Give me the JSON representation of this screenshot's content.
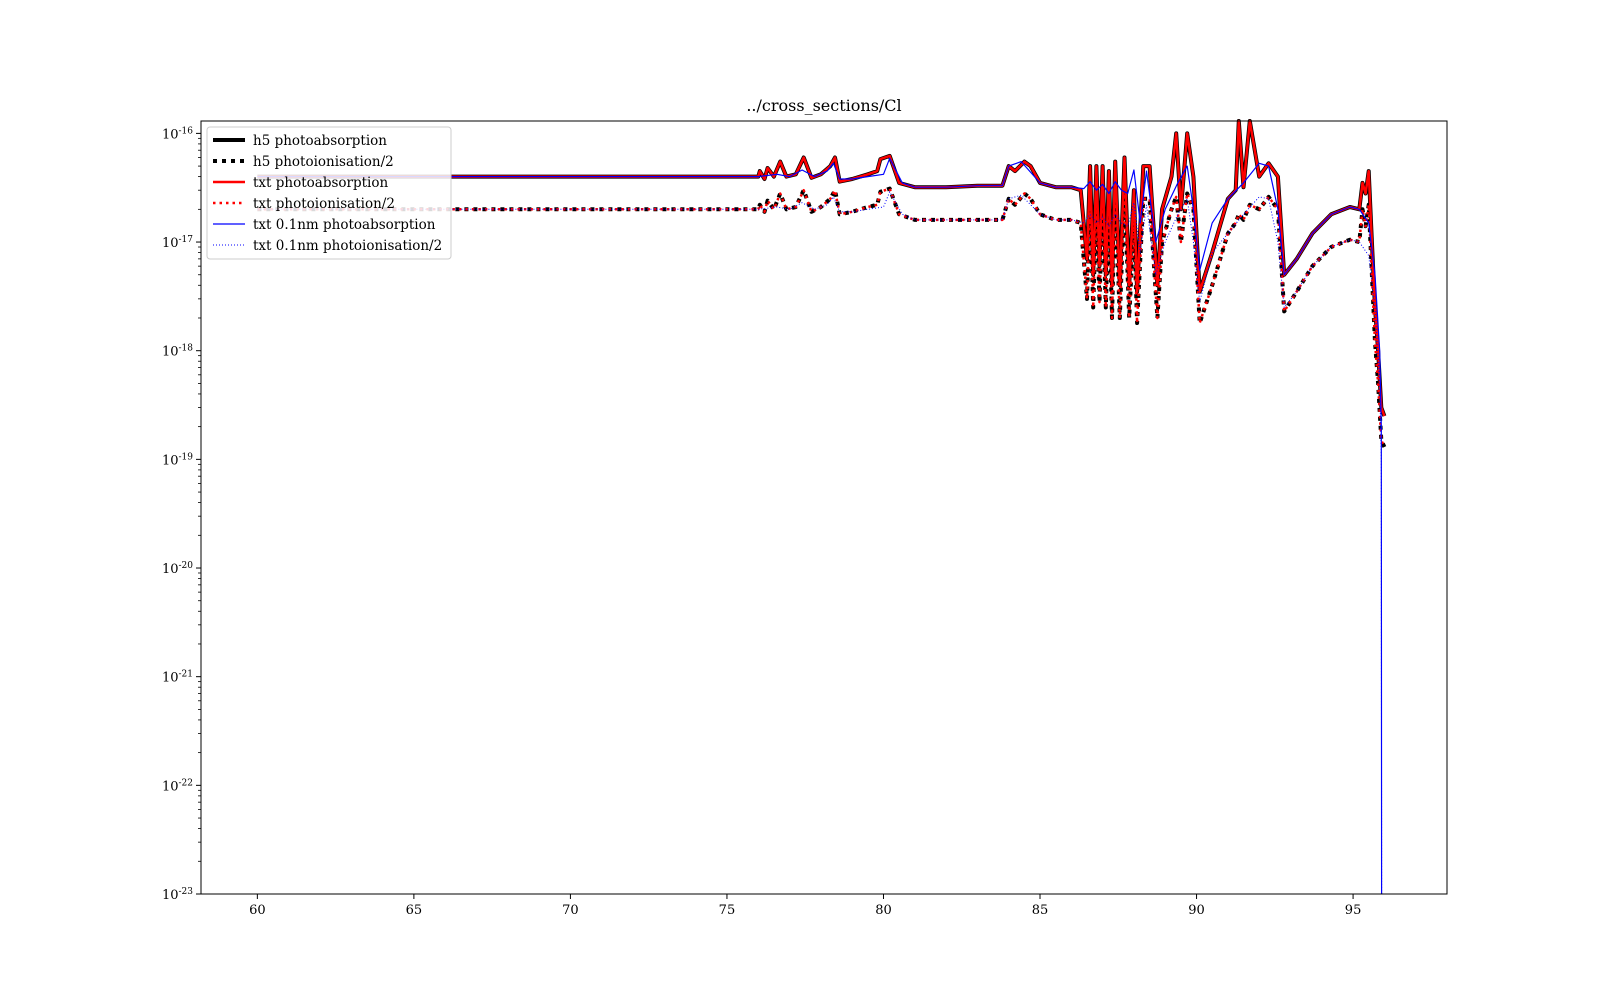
{
  "chart_data": {
    "type": "line",
    "title": "../cross_sections/Cl",
    "xlabel": "",
    "ylabel": "",
    "xlim": [
      58.2,
      98.0
    ],
    "ylim": [
      1e-23,
      1.3e-16
    ],
    "y_scale": "log",
    "x_ticks": [
      60,
      65,
      70,
      75,
      80,
      85,
      90,
      95
    ],
    "y_ticks": [
      {
        "exp": -16,
        "base": "10",
        "sup": "-16"
      },
      {
        "exp": -17,
        "base": "10",
        "sup": "-17"
      },
      {
        "exp": -18,
        "base": "10",
        "sup": "-18"
      },
      {
        "exp": -19,
        "base": "10",
        "sup": "-19"
      },
      {
        "exp": -20,
        "base": "10",
        "sup": "-20"
      },
      {
        "exp": -21,
        "base": "10",
        "sup": "-21"
      },
      {
        "exp": -22,
        "base": "10",
        "sup": "-22"
      },
      {
        "exp": -23,
        "base": "10",
        "sup": "-23"
      }
    ],
    "grid": false,
    "legend_position": "top-left",
    "x": [
      60,
      62,
      64,
      66,
      68,
      70,
      72,
      74,
      75,
      76,
      76.05,
      76.2,
      76.3,
      76.5,
      76.7,
      76.9,
      77.2,
      77.45,
      77.7,
      78.0,
      78.3,
      78.45,
      78.6,
      79.0,
      79.5,
      79.8,
      79.9,
      80.2,
      80.5,
      81.0,
      82.0,
      83.0,
      83.8,
      84.0,
      84.2,
      84.5,
      84.7,
      85.0,
      85.5,
      86.0,
      86.3,
      86.5,
      86.6,
      86.7,
      86.8,
      86.9,
      87.0,
      87.1,
      87.2,
      87.3,
      87.4,
      87.55,
      87.7,
      87.85,
      88.0,
      88.1,
      88.3,
      88.5,
      88.75,
      88.9,
      89.2,
      89.35,
      89.5,
      89.7,
      89.9,
      90.1,
      90.5,
      91.0,
      91.25,
      91.35,
      91.5,
      91.7,
      92.0,
      92.3,
      92.6,
      92.8,
      93.2,
      93.7,
      94.3,
      94.9,
      95.2,
      95.3,
      95.4,
      95.5,
      95.6,
      95.7,
      95.8,
      95.9,
      96.0
    ],
    "series": [
      {
        "name": "h5 photoabsorption",
        "color": "#000000",
        "style": "solid-thick",
        "values": [
          4e-17,
          4e-17,
          4e-17,
          4e-17,
          4e-17,
          4e-17,
          4e-17,
          4e-17,
          4e-17,
          4e-17,
          4.5e-17,
          3.8e-17,
          4.8e-17,
          4e-17,
          5.5e-17,
          4e-17,
          4.2e-17,
          6e-17,
          3.9e-17,
          4.2e-17,
          5e-17,
          6e-17,
          3.6e-17,
          3.8e-17,
          4.2e-17,
          4.5e-17,
          5.8e-17,
          6.2e-17,
          3.5e-17,
          3.2e-17,
          3.2e-17,
          3.3e-17,
          3.3e-17,
          5e-17,
          4.5e-17,
          5.5e-17,
          5e-17,
          3.5e-17,
          3.2e-17,
          3.2e-17,
          3e-17,
          7e-18,
          5e-17,
          5e-18,
          5e-17,
          6e-18,
          5e-17,
          5e-18,
          4.5e-17,
          4e-18,
          5.5e-17,
          4e-18,
          6e-17,
          4e-18,
          3e-17,
          3.5e-18,
          5e-17,
          5e-17,
          4e-18,
          2e-17,
          4e-17,
          1e-16,
          2e-17,
          1e-16,
          4e-17,
          3.5e-18,
          8e-18,
          2.5e-17,
          3e-17,
          1.3e-16,
          3.2e-17,
          1.3e-16,
          4e-17,
          5.3e-17,
          4e-17,
          5e-18,
          7e-18,
          1.2e-17,
          1.8e-17,
          2.1e-17,
          2e-17,
          3.5e-17,
          2.8e-17,
          4.5e-17,
          1e-17,
          2.5e-18,
          1e-18,
          3e-19,
          2.5e-19
        ]
      },
      {
        "name": "h5 photoionisation/2",
        "color": "#000000",
        "style": "dotted-thick",
        "values": [
          2e-17,
          2e-17,
          2e-17,
          2e-17,
          2e-17,
          2e-17,
          2e-17,
          2e-17,
          2e-17,
          2e-17,
          2.2e-17,
          1.9e-17,
          2.4e-17,
          2e-17,
          2.8e-17,
          2e-17,
          2.1e-17,
          3e-17,
          1.9e-17,
          2.1e-17,
          2.5e-17,
          3e-17,
          1.8e-17,
          1.9e-17,
          2.1e-17,
          2.2e-17,
          2.9e-17,
          3.1e-17,
          1.8e-17,
          1.6e-17,
          1.6e-17,
          1.6e-17,
          1.6e-17,
          2.5e-17,
          2.2e-17,
          2.8e-17,
          2.5e-17,
          1.8e-17,
          1.6e-17,
          1.6e-17,
          1.5e-17,
          3e-18,
          2.5e-17,
          2.5e-18,
          2.5e-17,
          2.8e-18,
          2.5e-17,
          2.5e-18,
          2.2e-17,
          2e-18,
          2.8e-17,
          2e-18,
          3e-17,
          2e-18,
          1.5e-17,
          1.8e-18,
          2.5e-17,
          2.5e-17,
          2e-18,
          1e-17,
          2e-17,
          2.6e-17,
          1e-17,
          2.8e-17,
          2e-17,
          1.8e-18,
          4e-18,
          1.2e-17,
          1.5e-17,
          1.8e-17,
          1.6e-17,
          2.2e-17,
          2e-17,
          2.6e-17,
          2e-17,
          2.3e-18,
          3.5e-18,
          6e-18,
          9e-18,
          1.05e-17,
          1e-17,
          2e-17,
          1.4e-17,
          2.2e-17,
          5e-18,
          1.2e-18,
          5e-19,
          1.5e-19,
          1.3e-19
        ]
      },
      {
        "name": "txt photoabsorption",
        "color": "#ff0000",
        "style": "solid-medium",
        "values": [
          4e-17,
          4e-17,
          4e-17,
          4e-17,
          4e-17,
          4e-17,
          4e-17,
          4e-17,
          4e-17,
          4e-17,
          4.5e-17,
          3.8e-17,
          4.8e-17,
          4e-17,
          5.5e-17,
          4e-17,
          4.2e-17,
          6e-17,
          3.9e-17,
          4.2e-17,
          5e-17,
          6e-17,
          3.6e-17,
          3.8e-17,
          4.2e-17,
          4.5e-17,
          5.8e-17,
          6.2e-17,
          3.5e-17,
          3.2e-17,
          3.2e-17,
          3.3e-17,
          3.3e-17,
          5e-17,
          4.5e-17,
          5.5e-17,
          5e-17,
          3.5e-17,
          3.2e-17,
          3.2e-17,
          3e-17,
          7e-18,
          5e-17,
          5e-18,
          5e-17,
          6e-18,
          5e-17,
          5e-18,
          4.5e-17,
          4e-18,
          5.5e-17,
          4e-18,
          6e-17,
          4e-18,
          3e-17,
          3.5e-18,
          5e-17,
          5e-17,
          4e-18,
          2e-17,
          4e-17,
          1e-16,
          2e-17,
          1e-16,
          4e-17,
          3.5e-18,
          8e-18,
          2.5e-17,
          3e-17,
          1.3e-16,
          3.2e-17,
          1.3e-16,
          4e-17,
          5.3e-17,
          4e-17,
          5e-18,
          7e-18,
          1.2e-17,
          1.8e-17,
          2.1e-17,
          2e-17,
          3.5e-17,
          2.8e-17,
          4.5e-17,
          1e-17,
          2.5e-18,
          1e-18,
          3e-19,
          2.5e-19
        ]
      },
      {
        "name": "txt photoionisation/2",
        "color": "#ff0000",
        "style": "dotted-medium",
        "values": [
          2e-17,
          2e-17,
          2e-17,
          2e-17,
          2e-17,
          2e-17,
          2e-17,
          2e-17,
          2e-17,
          2e-17,
          2.2e-17,
          1.9e-17,
          2.4e-17,
          2e-17,
          2.8e-17,
          2e-17,
          2.1e-17,
          3e-17,
          1.9e-17,
          2.1e-17,
          2.5e-17,
          3e-17,
          1.8e-17,
          1.9e-17,
          2.1e-17,
          2.2e-17,
          2.9e-17,
          3.1e-17,
          1.8e-17,
          1.6e-17,
          1.6e-17,
          1.6e-17,
          1.6e-17,
          2.5e-17,
          2.2e-17,
          2.8e-17,
          2.5e-17,
          1.8e-17,
          1.6e-17,
          1.6e-17,
          1.5e-17,
          3e-18,
          2.5e-17,
          2.5e-18,
          2.5e-17,
          2.8e-18,
          2.5e-17,
          2.5e-18,
          2.2e-17,
          2e-18,
          2.8e-17,
          2e-18,
          3e-17,
          2e-18,
          1.5e-17,
          1.8e-18,
          2.5e-17,
          2.5e-17,
          2e-18,
          1e-17,
          2e-17,
          2.6e-17,
          1e-17,
          2.8e-17,
          2e-17,
          1.8e-18,
          4e-18,
          1.2e-17,
          1.5e-17,
          1.8e-17,
          1.6e-17,
          2.2e-17,
          2e-17,
          2.6e-17,
          2e-17,
          2.3e-18,
          3.5e-18,
          6e-18,
          9e-18,
          1.05e-17,
          1e-17,
          2e-17,
          1.4e-17,
          2.2e-17,
          5e-18,
          1.2e-18,
          5e-19,
          1.5e-19,
          1.3e-19
        ]
      },
      {
        "name": "txt 0.1nm photoabsorption",
        "color": "#0000ff",
        "style": "solid-thin",
        "x": [
          60,
          65,
          70,
          75,
          76,
          76.6,
          77.0,
          77.4,
          77.8,
          78.2,
          78.4,
          78.6,
          79.0,
          79.5,
          80.0,
          80.2,
          80.6,
          81.0,
          82.0,
          83.0,
          83.8,
          84.0,
          84.4,
          85.0,
          85.5,
          86.0,
          86.4,
          86.6,
          86.8,
          87.0,
          87.2,
          87.4,
          87.6,
          87.8,
          88.0,
          88.2,
          88.4,
          88.7,
          89.0,
          89.4,
          89.7,
          89.9,
          90.1,
          90.5,
          91.0,
          91.5,
          92.0,
          92.3,
          92.6,
          92.8,
          93.2,
          93.7,
          94.3,
          94.9,
          95.2,
          95.5,
          95.7,
          95.85,
          95.9,
          95.91
        ],
        "values": [
          4e-17,
          4e-17,
          4e-17,
          4e-17,
          4e-17,
          4.2e-17,
          4e-17,
          4.6e-17,
          4e-17,
          4.5e-17,
          5.3e-17,
          3.8e-17,
          3.8e-17,
          4e-17,
          4.2e-17,
          5.9e-17,
          3.5e-17,
          3.2e-17,
          3.2e-17,
          3.3e-17,
          3.3e-17,
          5e-17,
          5.5e-17,
          3.5e-17,
          3.2e-17,
          3.2e-17,
          3.1e-17,
          3.6e-17,
          3e-17,
          3.4e-17,
          2.8e-17,
          3.6e-17,
          3e-17,
          2.8e-17,
          4.6e-17,
          1.5e-17,
          4.5e-17,
          1e-17,
          2e-17,
          3.5e-17,
          5e-17,
          2e-17,
          5.5e-18,
          1.5e-17,
          2.5e-17,
          3.5e-17,
          5.3e-17,
          5e-17,
          2e-17,
          5e-18,
          7e-18,
          1.2e-17,
          1.8e-17,
          2.1e-17,
          2e-17,
          1.5e-17,
          5e-18,
          1e-18,
          2e-19,
          1e-23
        ]
      },
      {
        "name": "txt 0.1nm photoionisation/2",
        "color": "#0000ff",
        "style": "dotted-thin",
        "x": [
          60,
          65,
          70,
          75,
          76,
          76.6,
          77.0,
          77.4,
          77.8,
          78.2,
          78.4,
          78.6,
          79.0,
          79.5,
          80.0,
          80.2,
          80.6,
          81.0,
          82.0,
          83.0,
          83.8,
          84.0,
          84.4,
          85.0,
          85.5,
          86.0,
          86.4,
          86.6,
          86.8,
          87.0,
          87.2,
          87.4,
          87.6,
          87.8,
          88.0,
          88.2,
          88.4,
          88.7,
          89.0,
          89.4,
          89.7,
          89.9,
          90.1,
          90.5,
          91.0,
          91.5,
          92.0,
          92.3,
          92.6,
          92.8,
          93.2,
          93.7,
          94.3,
          94.9,
          95.2,
          95.5,
          95.7,
          95.85,
          95.9,
          95.91
        ],
        "values": [
          2e-17,
          2e-17,
          2e-17,
          2e-17,
          2e-17,
          2.1e-17,
          2e-17,
          2.3e-17,
          2e-17,
          2.2e-17,
          2.6e-17,
          1.9e-17,
          1.9e-17,
          2e-17,
          2.1e-17,
          2.9e-17,
          1.8e-17,
          1.6e-17,
          1.6e-17,
          1.6e-17,
          1.6e-17,
          2.5e-17,
          2.7e-17,
          1.8e-17,
          1.6e-17,
          1.6e-17,
          1.5e-17,
          1.8e-17,
          1.5e-17,
          1.7e-17,
          1.4e-17,
          1.8e-17,
          1.5e-17,
          1.4e-17,
          2.3e-17,
          8e-18,
          2.2e-17,
          5e-18,
          1e-17,
          1.8e-17,
          2.5e-17,
          1e-17,
          2.8e-18,
          8e-18,
          1.2e-17,
          1.8e-17,
          2.6e-17,
          2.5e-17,
          1e-17,
          2.5e-18,
          3.5e-18,
          6e-18,
          9e-18,
          1.05e-17,
          1e-17,
          7.5e-18,
          2.5e-18,
          5e-19,
          1e-19,
          1e-23
        ]
      }
    ]
  }
}
